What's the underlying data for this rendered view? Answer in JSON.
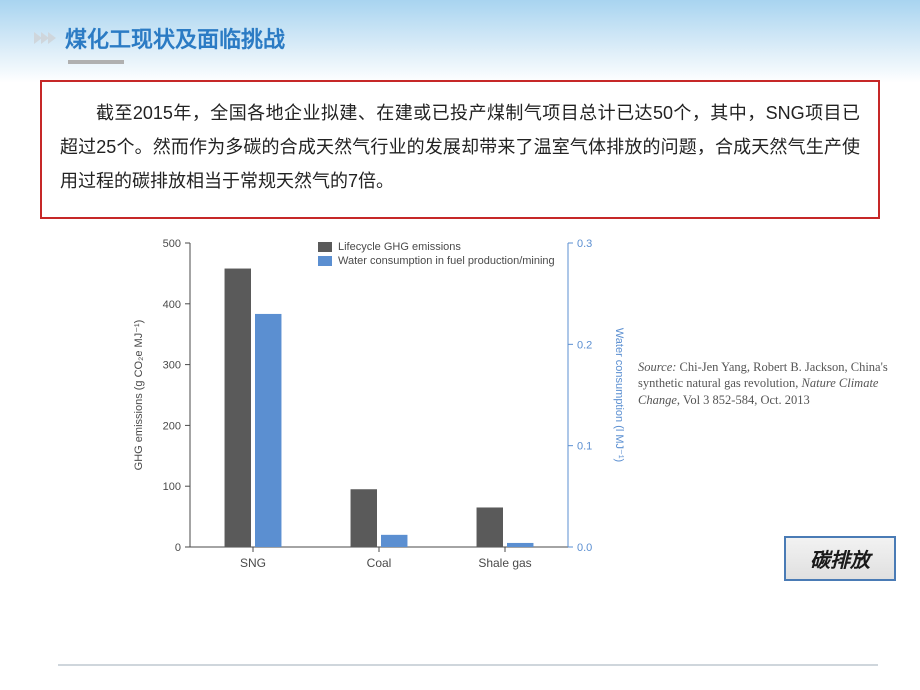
{
  "header": {
    "title": "煤化工现状及面临挑战"
  },
  "paragraph": {
    "text_html": "截至2015年，全国各地企业拟建、在建或已投产煤制气项目总计已达50个，其中，SNG项目已超过25个。然而作为多碳的合成天然气行业的发展却带来了温室气体排放的问题，合成天然气生产使用过程的碳排放相当于常规天然气的7倍。"
  },
  "chart": {
    "type": "grouped-bar-dual-axis",
    "background_color": "#ffffff",
    "categories": [
      "SNG",
      "Coal",
      "Shale gas"
    ],
    "series": [
      {
        "name": "Lifecycle GHG emissions",
        "axis": "left",
        "color": "#5a5a5a",
        "values": [
          458,
          95,
          65
        ]
      },
      {
        "name": "Water consumption in fuel production/mining",
        "axis": "right",
        "color": "#5b8fd1",
        "values": [
          0.23,
          0.012,
          0.004
        ]
      }
    ],
    "left_axis": {
      "label": "GHG emissions (g CO₂e MJ⁻¹)",
      "min": 0,
      "max": 500,
      "tick_step": 100,
      "color": "#5a5a5a",
      "label_fontsize": 11
    },
    "right_axis": {
      "label": "Water consumption (l MJ⁻¹)",
      "min": 0,
      "max": 0.3,
      "tick_step": 0.1,
      "color": "#5b8fd1",
      "label_fontsize": 11
    },
    "plot": {
      "grid": false,
      "tick_color": "#4a4a4a",
      "tick_fontsize": 11,
      "bar_width": 0.35,
      "group_gap": 0.55,
      "category_fontsize": 12,
      "legend_fontsize": 11,
      "legend_pos": "top-center"
    }
  },
  "source": {
    "prefix": "Source: ",
    "authors": "Chi-Jen Yang, Robert B. Jackson, ",
    "title": "China's synthetic natural gas revolution, ",
    "journal": "Nature Climate Change",
    "rest": ", Vol 3 852-584, Oct. 2013"
  },
  "badge": {
    "label": "碳排放"
  },
  "colors": {
    "title": "#2b7bc4",
    "box_border": "#c62828",
    "badge_border": "#4a7bb5"
  }
}
